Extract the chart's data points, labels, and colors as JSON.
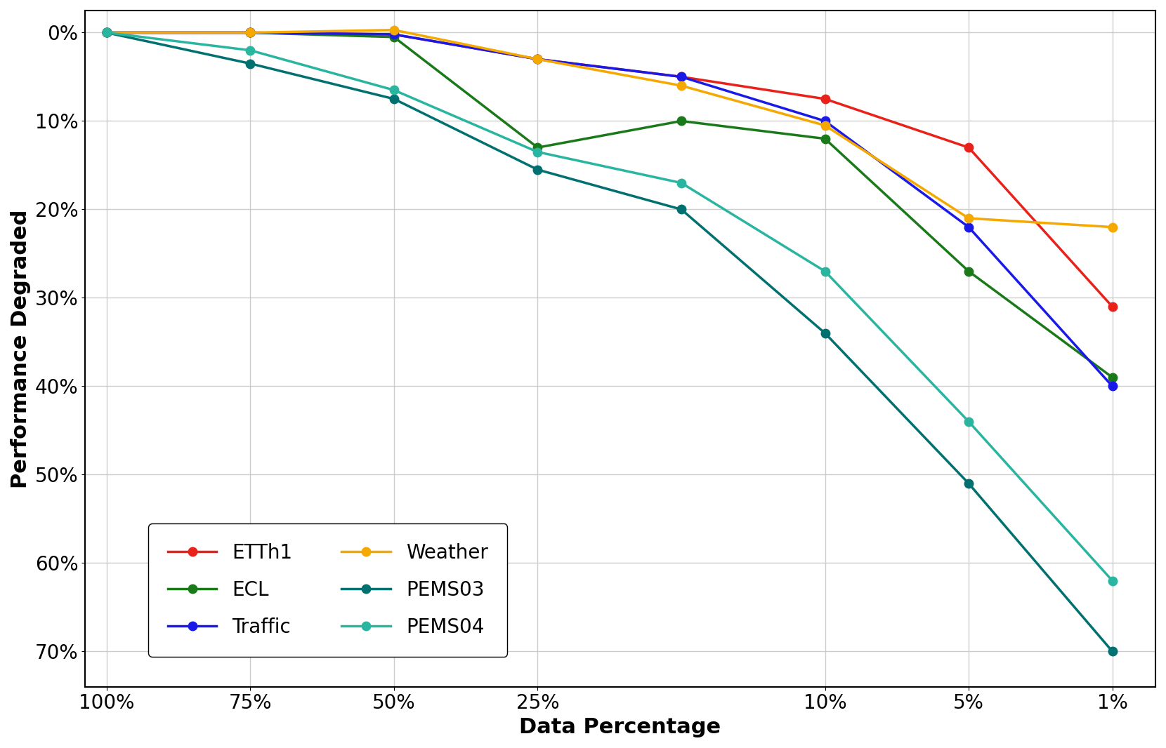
{
  "series": [
    {
      "label": "ETTh1",
      "color": "#e8221a",
      "x_pos": [
        0,
        1,
        2,
        3,
        4,
        5,
        6,
        7
      ],
      "y": [
        0.0,
        0.0,
        -0.002,
        -0.03,
        -0.05,
        -0.075,
        -0.13,
        -0.31
      ]
    },
    {
      "label": "ECL",
      "color": "#1a7a1a",
      "x_pos": [
        0,
        1,
        2,
        3,
        4,
        5,
        6,
        7
      ],
      "y": [
        0.0,
        0.0,
        -0.005,
        -0.13,
        -0.1,
        -0.12,
        -0.27,
        -0.39
      ]
    },
    {
      "label": "Traffic",
      "color": "#1a1ae8",
      "x_pos": [
        0,
        1,
        2,
        3,
        4,
        5,
        6,
        7
      ],
      "y": [
        0.0,
        0.0,
        -0.002,
        -0.03,
        -0.05,
        -0.1,
        -0.22,
        -0.4
      ]
    },
    {
      "label": "Weather",
      "color": "#f5a800",
      "x_pos": [
        0,
        1,
        2,
        3,
        4,
        5,
        6,
        7
      ],
      "y": [
        0.0,
        0.0,
        0.003,
        -0.03,
        -0.06,
        -0.105,
        -0.21,
        -0.22
      ]
    },
    {
      "label": "PEMS03",
      "color": "#007070",
      "x_pos": [
        0,
        1,
        2,
        3,
        4,
        5,
        6,
        7
      ],
      "y": [
        0.0,
        -0.035,
        -0.075,
        -0.155,
        -0.2,
        -0.34,
        -0.51,
        -0.7
      ]
    },
    {
      "label": "PEMS04",
      "color": "#2ab5a0",
      "x_pos": [
        0,
        1,
        2,
        3,
        4,
        5,
        6,
        7
      ],
      "y": [
        0.0,
        -0.02,
        -0.065,
        -0.135,
        -0.17,
        -0.27,
        -0.44,
        -0.62
      ]
    }
  ],
  "xtick_positions": [
    0,
    1,
    2,
    3,
    5,
    6,
    7
  ],
  "xtick_labels": [
    "100%",
    "75%",
    "50%",
    "25%",
    "10%",
    "5%",
    "1%"
  ],
  "yticks": [
    0.0,
    -0.1,
    -0.2,
    -0.3,
    -0.4,
    -0.5,
    -0.6,
    -0.7
  ],
  "ytick_labels": [
    "0%",
    "10%",
    "20%",
    "30%",
    "40%",
    "50%",
    "60%",
    "70%"
  ],
  "xlabel": "Data Percentage",
  "ylabel": "Performance Degraded",
  "background_color": "#ffffff",
  "grid_color": "#cccccc",
  "linewidth": 2.5,
  "markersize": 9,
  "label_fontsize": 22,
  "tick_fontsize": 20,
  "legend_fontsize": 20
}
